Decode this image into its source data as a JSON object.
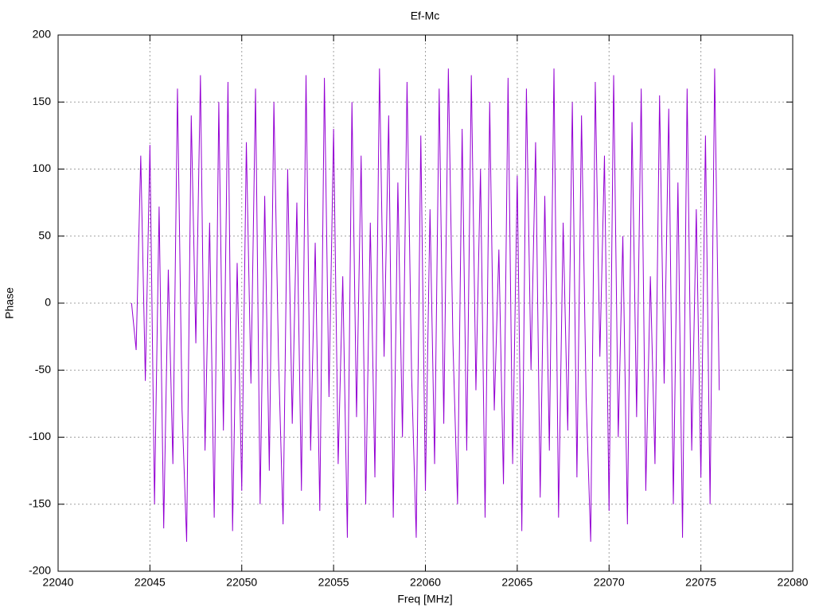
{
  "chart_data": {
    "type": "line",
    "title": "Ef-Mc",
    "xlabel": "Freq [MHz]",
    "ylabel": "Phase",
    "x": [
      22044,
      22044.25,
      22044.5,
      22044.75,
      22045,
      22045.25,
      22045.5,
      22045.75,
      22046,
      22046.25,
      22046.5,
      22046.75,
      22047,
      22047.25,
      22047.5,
      22047.75,
      22048,
      22048.25,
      22048.5,
      22048.75,
      22049,
      22049.25,
      22049.5,
      22049.75,
      22050,
      22050.25,
      22050.5,
      22050.75,
      22051,
      22051.25,
      22051.5,
      22051.75,
      22052,
      22052.25,
      22052.5,
      22052.75,
      22053,
      22053.25,
      22053.5,
      22053.75,
      22054,
      22054.25,
      22054.5,
      22054.75,
      22055,
      22055.25,
      22055.5,
      22055.75,
      22056,
      22056.25,
      22056.5,
      22056.75,
      22057,
      22057.25,
      22057.5,
      22057.75,
      22058,
      22058.25,
      22058.5,
      22058.75,
      22059,
      22059.25,
      22059.5,
      22059.75,
      22060,
      22060.25,
      22060.5,
      22060.75,
      22061,
      22061.25,
      22061.5,
      22061.75,
      22062,
      22062.25,
      22062.5,
      22062.75,
      22063,
      22063.25,
      22063.5,
      22063.75,
      22064,
      22064.25,
      22064.5,
      22064.75,
      22065,
      22065.25,
      22065.5,
      22065.75,
      22066,
      22066.25,
      22066.5,
      22066.75,
      22067,
      22067.25,
      22067.5,
      22067.75,
      22068,
      22068.25,
      22068.5,
      22068.75,
      22069,
      22069.25,
      22069.5,
      22069.75,
      22070,
      22070.25,
      22070.5,
      22070.75,
      22071,
      22071.25,
      22071.5,
      22071.75,
      22072,
      22072.25,
      22072.5,
      22072.75,
      22073,
      22073.25,
      22073.5,
      22073.75,
      22074,
      22074.25,
      22074.5,
      22074.75,
      22075,
      22075.25,
      22075.5,
      22075.75,
      22076
    ],
    "series": [
      {
        "color": "#9400d3",
        "values": [
          0,
          -35,
          110,
          -58,
          118,
          -150,
          72,
          -168,
          25,
          -120,
          160,
          -80,
          -178,
          140,
          -30,
          170,
          -110,
          60,
          -160,
          150,
          -95,
          165,
          -170,
          30,
          -140,
          120,
          -60,
          160,
          -150,
          80,
          -125,
          150,
          -40,
          -165,
          100,
          -90,
          75,
          -140,
          170,
          -110,
          45,
          -155,
          168,
          -70,
          130,
          -120,
          20,
          -175,
          150,
          -85,
          110,
          -150,
          60,
          -130,
          175,
          -40,
          140,
          -160,
          90,
          -100,
          165,
          -55,
          -175,
          125,
          -140,
          70,
          -120,
          160,
          -90,
          175,
          -30,
          -150,
          130,
          -110,
          170,
          -65,
          100,
          -160,
          150,
          -80,
          40,
          -135,
          168,
          -120,
          95,
          -170,
          160,
          -50,
          120,
          -145,
          80,
          -110,
          175,
          -160,
          60,
          -95,
          150,
          -130,
          140,
          -70,
          -178,
          165,
          -40,
          110,
          -155,
          170,
          -100,
          50,
          -165,
          135,
          -85,
          160,
          -140,
          20,
          -120,
          155,
          -60,
          145,
          -150,
          90,
          -175,
          160,
          -110,
          70,
          -130,
          125,
          -150,
          175,
          -65
        ]
      }
    ],
    "xlim": [
      22040,
      22080
    ],
    "xticks": [
      22040,
      22045,
      22050,
      22055,
      22060,
      22065,
      22070,
      22075,
      22080
    ],
    "ylim": [
      -200,
      200
    ],
    "yticks": [
      -200,
      -150,
      -100,
      -50,
      0,
      50,
      100,
      150,
      200
    ],
    "grid": true
  }
}
